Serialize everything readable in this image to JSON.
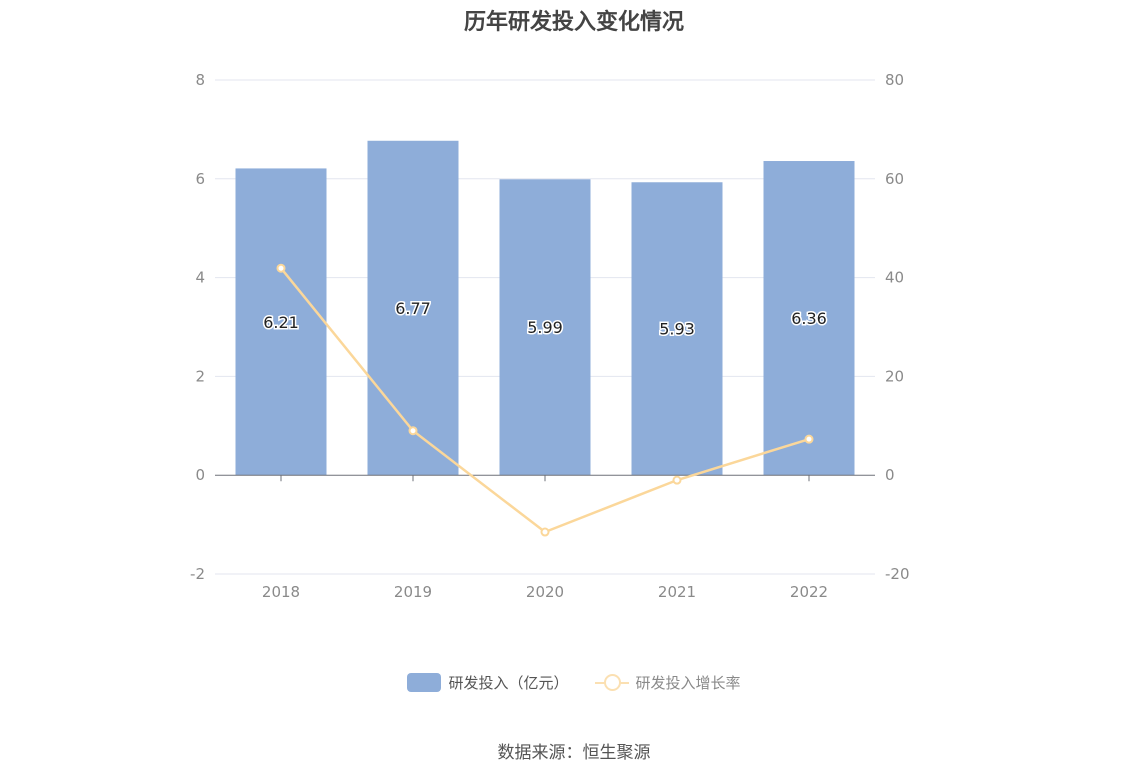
{
  "chart_data": {
    "type": "bar",
    "title": "历年研发投入变化情况",
    "categories": [
      "2018",
      "2019",
      "2020",
      "2021",
      "2022"
    ],
    "series": [
      {
        "name": "研发投入（亿元）",
        "type": "bar",
        "axis": "left",
        "values": [
          6.21,
          6.77,
          5.99,
          5.93,
          6.36
        ],
        "labels": [
          "6.21",
          "6.77",
          "5.99",
          "5.93",
          "6.36"
        ],
        "color": "#8eadd9"
      },
      {
        "name": "研发投入增长率",
        "type": "line",
        "axis": "right",
        "values": [
          41.9,
          9.0,
          -11.5,
          -1.0,
          7.3
        ],
        "color": "#fbd79a"
      }
    ],
    "y_left": {
      "min": -2,
      "max": 8,
      "ticks": [
        "8",
        "6",
        "4",
        "2",
        "0",
        "-2"
      ]
    },
    "y_right": {
      "min": -20,
      "max": 80,
      "ticks": [
        "80",
        "60",
        "40",
        "20",
        "0",
        "-20"
      ]
    },
    "grid": true,
    "legend_position": "bottom"
  },
  "legend": {
    "bar_label": "研发投入（亿元）",
    "line_label": "研发投入增长率"
  },
  "source": "数据来源：恒生聚源"
}
